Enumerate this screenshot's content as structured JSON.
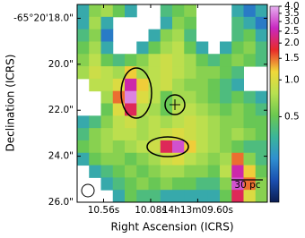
{
  "chart_data": {
    "type": "heatmap",
    "xlabel": "Right Ascension (ICRS)",
    "ylabel": "Declination (ICRS)",
    "xlim": [
      10.83,
      8.89
    ],
    "ylim": [
      17.4,
      26.0
    ],
    "xticks": [
      {
        "value": 10.56,
        "label": "10.56s"
      },
      {
        "value": 10.08,
        "label": "10.08s"
      },
      {
        "value": 9.6,
        "label": "14h13m09.60s"
      }
    ],
    "yticks": [
      {
        "value": 18,
        "label": "-65°20'18.0\""
      },
      {
        "value": 20,
        "label": "20.0\""
      },
      {
        "value": 22,
        "label": "22.0\""
      },
      {
        "value": 24,
        "label": "24.0\""
      },
      {
        "value": 26,
        "label": "26.0\""
      }
    ],
    "clim": [
      0.1,
      4.0
    ],
    "color_log": true,
    "cticks": [
      {
        "value": 4,
        "label": "4.0"
      },
      {
        "value": 3.5,
        "label": "3.5"
      },
      {
        "value": 3,
        "label": "3.0"
      },
      {
        "value": 2.5,
        "label": "2.5"
      },
      {
        "value": 2,
        "label": "2.0"
      },
      {
        "value": 1.5,
        "label": "1.5"
      },
      {
        "value": 1,
        "label": "1.0"
      },
      {
        "value": 0.5,
        "label": "0.5"
      }
    ],
    "colormap": [
      "#0b1d51",
      "#1a4fb0",
      "#2f8fd0",
      "#3bb59a",
      "#6cc850",
      "#b8e050",
      "#f0d83a",
      "#e82a2a",
      "#c828c0",
      "#e6b0f0"
    ],
    "scale_bar": "30 pc",
    "z": [
      [
        0.3,
        0.6,
        0.7,
        0.5,
        0.3,
        null,
        null,
        0.4,
        0.5,
        0.6,
        null,
        null,
        null,
        0.3,
        0.2,
        0.3
      ],
      [
        0.3,
        0.7,
        0.3,
        null,
        null,
        null,
        null,
        0.3,
        0.6,
        0.5,
        null,
        null,
        null,
        0.4,
        0.3,
        0.2
      ],
      [
        0.4,
        0.6,
        0.2,
        null,
        null,
        null,
        0.3,
        0.6,
        0.7,
        0.4,
        null,
        null,
        null,
        0.4,
        0.5,
        0.3
      ],
      [
        0.5,
        0.7,
        0.3,
        null,
        null,
        0.3,
        0.5,
        0.7,
        0.8,
        0.5,
        0.3,
        null,
        0.3,
        0.5,
        0.6,
        0.4
      ],
      [
        0.6,
        0.8,
        0.5,
        0.4,
        0.5,
        0.6,
        0.8,
        0.9,
        0.8,
        0.7,
        0.5,
        0.4,
        0.5,
        0.6,
        0.5,
        0.4
      ],
      [
        0.7,
        0.9,
        0.8,
        0.7,
        1.2,
        0.7,
        0.8,
        0.9,
        0.8,
        0.7,
        0.6,
        0.6,
        0.5,
        0.4,
        null,
        null
      ],
      [
        null,
        0.8,
        0.8,
        1.0,
        2.5,
        1.2,
        0.8,
        0.9,
        0.7,
        0.6,
        0.6,
        0.5,
        0.4,
        0.3,
        null,
        null
      ],
      [
        null,
        null,
        0.7,
        1.5,
        3.5,
        1.0,
        0.8,
        0.5,
        0.7,
        0.7,
        0.6,
        0.5,
        0.4,
        0.5,
        0.4,
        0.3
      ],
      [
        null,
        null,
        0.5,
        1.0,
        2.0,
        0.8,
        0.7,
        0.5,
        0.8,
        0.8,
        0.7,
        0.6,
        0.5,
        0.6,
        0.5,
        0.4
      ],
      [
        0.3,
        0.4,
        0.6,
        0.8,
        0.9,
        0.7,
        0.8,
        0.7,
        0.8,
        0.9,
        0.8,
        0.7,
        0.6,
        0.6,
        0.5,
        0.5
      ],
      [
        0.4,
        0.6,
        0.7,
        0.8,
        0.8,
        0.7,
        0.8,
        0.9,
        1.0,
        0.9,
        0.8,
        0.7,
        0.6,
        0.7,
        0.6,
        0.5
      ],
      [
        0.5,
        0.6,
        0.7,
        0.6,
        0.7,
        0.8,
        0.9,
        2.0,
        3.0,
        1.2,
        0.8,
        0.7,
        0.6,
        0.5,
        0.4,
        0.4
      ],
      [
        0.3,
        0.5,
        0.6,
        0.6,
        0.5,
        0.6,
        0.7,
        0.9,
        1.0,
        0.8,
        0.7,
        0.6,
        0.7,
        1.5,
        0.6,
        0.4
      ],
      [
        null,
        0.3,
        0.4,
        0.5,
        0.6,
        0.5,
        0.6,
        0.7,
        0.7,
        0.6,
        0.6,
        0.5,
        0.8,
        2.5,
        1.2,
        0.5
      ],
      [
        null,
        null,
        0.3,
        0.4,
        0.5,
        0.6,
        0.5,
        0.6,
        0.5,
        0.5,
        0.4,
        0.4,
        0.6,
        3.0,
        1.5,
        0.6
      ],
      [
        null,
        null,
        null,
        0.3,
        0.5,
        0.4,
        0.4,
        0.3,
        0.3,
        0.3,
        0.3,
        0.3,
        0.5,
        2.0,
        1.0,
        0.6
      ]
    ]
  }
}
